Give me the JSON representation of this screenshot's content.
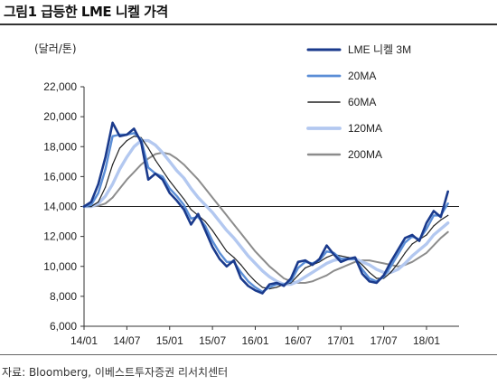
{
  "title": "그림1 급등한 LME 니켈 가격",
  "source": "자료: Bloomberg, 이베스트투자증권 리서치센터",
  "chart_data": {
    "type": "line",
    "unit_label": "(달러/톤)",
    "ylim": [
      6000,
      22000
    ],
    "y_ticks": [
      "6,000",
      "8,000",
      "10,000",
      "12,000",
      "14,000",
      "16,000",
      "18,000",
      "20,000",
      "22,000"
    ],
    "x_ticks": [
      "14/01",
      "14/07",
      "15/01",
      "15/07",
      "16/01",
      "16/07",
      "17/01",
      "17/07",
      "18/01"
    ],
    "reference_line": 14000,
    "legend_position": "top-right",
    "x_dates": [
      "2014-01",
      "2014-02",
      "2014-03",
      "2014-04",
      "2014-05",
      "2014-06",
      "2014-07",
      "2014-08",
      "2014-09",
      "2014-10",
      "2014-11",
      "2014-12",
      "2015-01",
      "2015-02",
      "2015-03",
      "2015-04",
      "2015-05",
      "2015-06",
      "2015-07",
      "2015-08",
      "2015-09",
      "2015-10",
      "2015-11",
      "2015-12",
      "2016-01",
      "2016-02",
      "2016-03",
      "2016-04",
      "2016-05",
      "2016-06",
      "2016-07",
      "2016-08",
      "2016-09",
      "2016-10",
      "2016-11",
      "2016-12",
      "2017-01",
      "2017-02",
      "2017-03",
      "2017-04",
      "2017-05",
      "2017-06",
      "2017-07",
      "2017-08",
      "2017-09",
      "2017-10",
      "2017-11",
      "2017-12",
      "2018-01",
      "2018-02",
      "2018-03",
      "2018-04"
    ],
    "series": [
      {
        "name": "LME 니켈 3M",
        "color": "#1a3a8c",
        "values": [
          14000,
          14300,
          15500,
          17300,
          19600,
          18700,
          18800,
          19200,
          18300,
          15800,
          16200,
          15800,
          14900,
          14400,
          13800,
          12800,
          13500,
          12400,
          11300,
          10500,
          10000,
          10400,
          9200,
          8700,
          8400,
          8200,
          8800,
          8900,
          8700,
          9200,
          10300,
          10400,
          10100,
          10500,
          11400,
          10800,
          10300,
          10500,
          10600,
          9500,
          9000,
          8900,
          9400,
          10300,
          11100,
          11900,
          12100,
          11700,
          12900,
          13700,
          13300,
          15000
        ]
      },
      {
        "name": "20MA",
        "color": "#5b8ed6",
        "values": [
          14000,
          14100,
          14900,
          16500,
          18700,
          18800,
          18800,
          18900,
          18500,
          16600,
          16200,
          16000,
          15200,
          14700,
          14100,
          13200,
          13300,
          12700,
          11700,
          10900,
          10300,
          10300,
          9600,
          9000,
          8600,
          8300,
          8600,
          8800,
          8800,
          9000,
          9900,
          10300,
          10200,
          10400,
          11000,
          10900,
          10500,
          10500,
          10500,
          9800,
          9200,
          9000,
          9300,
          10000,
          10800,
          11600,
          12000,
          11800,
          12500,
          13400,
          13400,
          14200
        ]
      },
      {
        "name": "60MA",
        "color": "#222222",
        "values": [
          14000,
          14000,
          14300,
          15300,
          16800,
          17900,
          18400,
          18700,
          18600,
          17900,
          17100,
          16400,
          15700,
          15100,
          14500,
          13800,
          13400,
          13000,
          12400,
          11700,
          11000,
          10600,
          10100,
          9500,
          9000,
          8600,
          8500,
          8600,
          8800,
          8900,
          9400,
          9900,
          10100,
          10300,
          10600,
          10800,
          10700,
          10600,
          10500,
          10100,
          9600,
          9200,
          9200,
          9600,
          10200,
          10900,
          11500,
          11800,
          12100,
          12700,
          13100,
          13400
        ]
      },
      {
        "name": "120MA",
        "color": "#b3c8f0",
        "values": [
          14000,
          14000,
          14200,
          14700,
          15500,
          16500,
          17300,
          18000,
          18400,
          18400,
          18100,
          17600,
          17000,
          16400,
          15900,
          15200,
          14600,
          14100,
          13600,
          13000,
          12400,
          11900,
          11300,
          10700,
          10200,
          9700,
          9300,
          9000,
          8800,
          8800,
          9000,
          9300,
          9600,
          9900,
          10200,
          10400,
          10500,
          10500,
          10500,
          10300,
          10100,
          9800,
          9600,
          9600,
          9800,
          10200,
          10700,
          11100,
          11500,
          12100,
          12500,
          12900
        ]
      },
      {
        "name": "200MA",
        "color": "#8c8c8c",
        "values": [
          14000,
          14000,
          14050,
          14200,
          14600,
          15200,
          15800,
          16300,
          16800,
          17200,
          17500,
          17600,
          17500,
          17200,
          16800,
          16300,
          15800,
          15200,
          14600,
          14000,
          13400,
          12800,
          12200,
          11600,
          11000,
          10500,
          10000,
          9600,
          9200,
          9000,
          8900,
          8900,
          9000,
          9200,
          9400,
          9700,
          9900,
          10100,
          10300,
          10400,
          10400,
          10300,
          10200,
          10100,
          10000,
          10100,
          10300,
          10600,
          10900,
          11400,
          11900,
          12300
        ]
      }
    ]
  }
}
